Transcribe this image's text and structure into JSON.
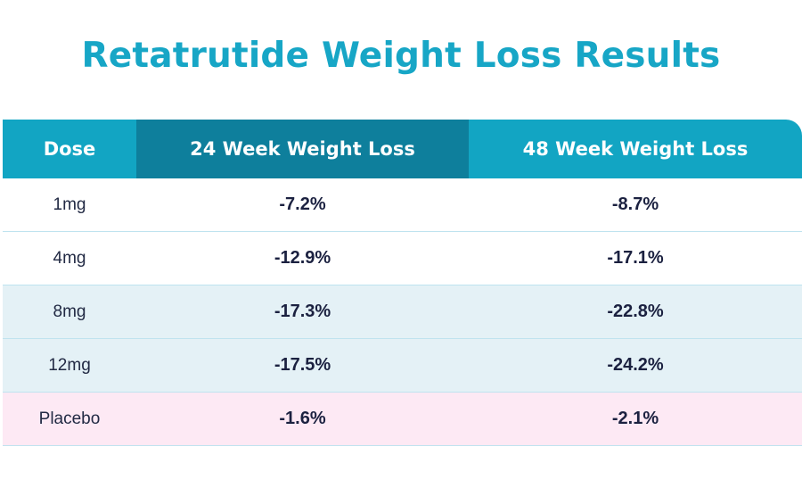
{
  "title": "Retatrutide Weight Loss Results",
  "columns": [
    "Dose",
    "24 Week Weight Loss",
    "48 Week Weight Loss"
  ],
  "rows": [
    {
      "dose": "1mg",
      "week24": "-7.2%",
      "week48": "-8.7%",
      "style": "white"
    },
    {
      "dose": "4mg",
      "week24": "-12.9%",
      "week48": "-17.1%",
      "style": "white"
    },
    {
      "dose": "8mg",
      "week24": "-17.3%",
      "week48": "-22.8%",
      "style": "blue"
    },
    {
      "dose": "12mg",
      "week24": "-17.5%",
      "week48": "-24.2%",
      "style": "blue"
    },
    {
      "dose": "Placebo",
      "week24": "-1.6%",
      "week48": "-2.1%",
      "style": "pink"
    }
  ],
  "colors": {
    "title": "#17a6c6",
    "header": "#12a5c3",
    "header_highlight": "#0e7f9c",
    "row_blue": "#e4f1f6",
    "row_pink": "#fde9f4",
    "text_dark": "#1b2140"
  }
}
